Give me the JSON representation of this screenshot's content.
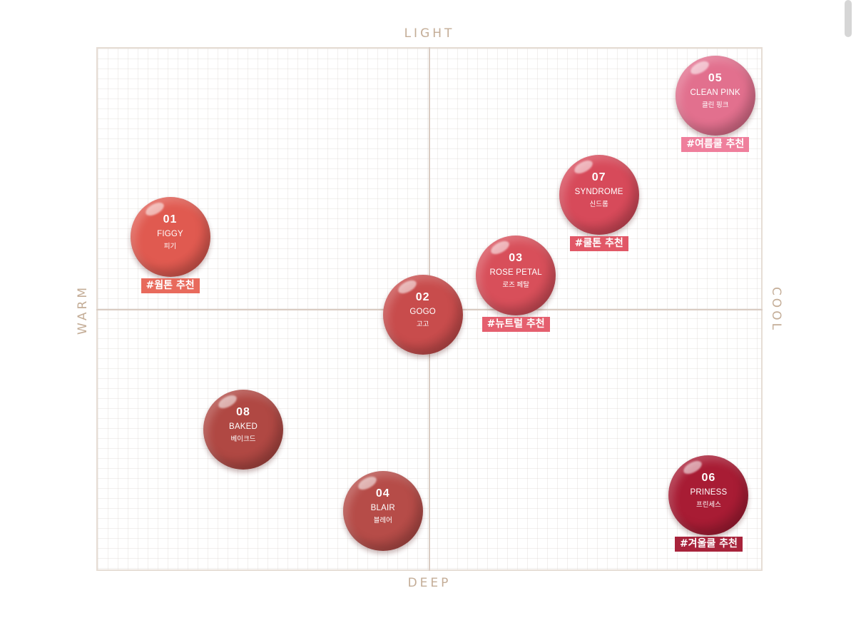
{
  "axes": {
    "top": "LIGHT",
    "bottom": "DEEP",
    "left": "WARM",
    "right": "COOL"
  },
  "swatches": [
    {
      "number": "01",
      "name": "FIGGY",
      "name_kr": "피기",
      "warm_cool": -0.78,
      "light_deep": 0.28,
      "color": "#e05a50",
      "tag": "#웜톤 추천",
      "tag_color": "#e86a5c"
    },
    {
      "number": "02",
      "name": "GOGO",
      "name_kr": "고고",
      "warm_cool": -0.02,
      "light_deep": -0.02,
      "color": "#c84c4c",
      "tag": "",
      "tag_color": ""
    },
    {
      "number": "03",
      "name": "ROSE PETAL",
      "name_kr": "로즈 페탈",
      "warm_cool": 0.26,
      "light_deep": 0.13,
      "color": "#d84f5a",
      "tag": "#뉴트럴 추천",
      "tag_color": "#e55f6e"
    },
    {
      "number": "04",
      "name": "BLAIR",
      "name_kr": "블레어",
      "warm_cool": -0.14,
      "light_deep": -0.77,
      "color": "#b64c48",
      "tag": "",
      "tag_color": ""
    },
    {
      "number": "05",
      "name": "CLEAN PINK",
      "name_kr": "클린 핑크",
      "warm_cool": 0.86,
      "light_deep": 0.82,
      "color": "#e2708e",
      "tag": "#여름쿨 추천",
      "tag_color": "#ef7f9c"
    },
    {
      "number": "06",
      "name": "PRINESS",
      "name_kr": "프린세스",
      "warm_cool": 0.84,
      "light_deep": -0.71,
      "color": "#a81c34",
      "tag": "#겨울쿨 추천",
      "tag_color": "#a8233b"
    },
    {
      "number": "07",
      "name": "SYNDROME",
      "name_kr": "신드롬",
      "warm_cool": 0.51,
      "light_deep": 0.44,
      "color": "#d74a5a",
      "tag": "#쿨톤 추천",
      "tag_color": "#e15766"
    },
    {
      "number": "08",
      "name": "BAKED",
      "name_kr": "베이크드",
      "warm_cool": -0.56,
      "light_deep": -0.46,
      "color": "#b04843",
      "tag": "",
      "tag_color": ""
    }
  ]
}
